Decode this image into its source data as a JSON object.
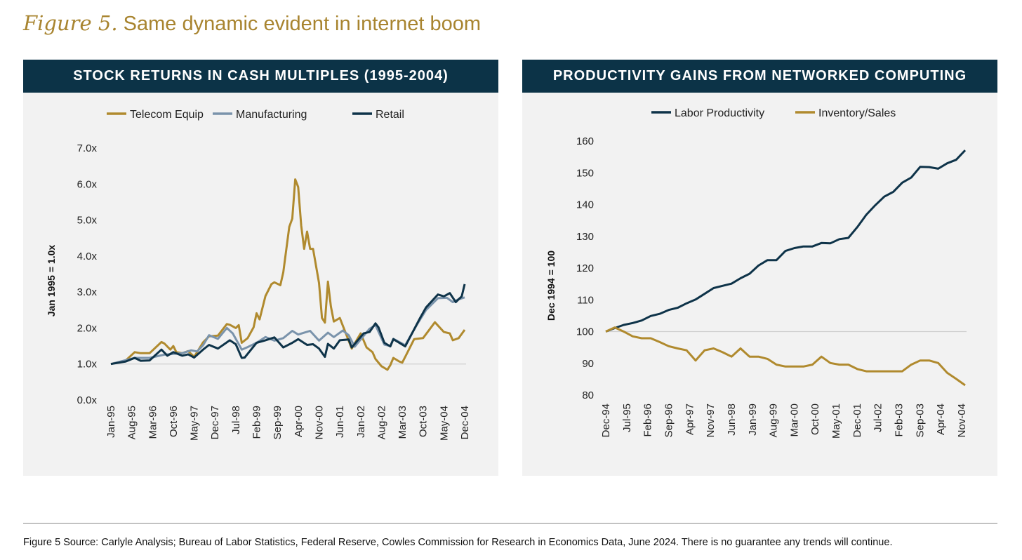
{
  "figure": {
    "number": "Figure 5.",
    "title": "Same dynamic evident in internet boom",
    "source": "Figure 5 Source: Carlyle Analysis; Bureau of Labor Statistics, Federal Reserve, Cowles Commission for Research in Economics Data, June 2024. There is no guarantee any trends will continue."
  },
  "colors": {
    "gold": "#b08a2e",
    "navy": "#0e3349",
    "steel": "#7a93ab",
    "header": "#0c3347"
  },
  "chart_data": [
    {
      "type": "line",
      "title": "STOCK RETURNS IN CASH MULTIPLES (1995-2004)",
      "ylabel": "Jan 1995 = 1.0x",
      "xlabel": "",
      "x_unit": "months since Jan-95",
      "xlim": [
        0,
        119
      ],
      "ylim": [
        0,
        7
      ],
      "yticks": [
        "0.0x",
        "1.0x",
        "2.0x",
        "3.0x",
        "4.0x",
        "5.0x",
        "6.0x",
        "7.0x"
      ],
      "xticks": [
        "Jan-95",
        "Aug-95",
        "Mar-96",
        "Oct-96",
        "May-97",
        "Dec-97",
        "Jul-98",
        "Feb-99",
        "Sep-99",
        "Apr-00",
        "Nov-00",
        "Jun-01",
        "Jan-02",
        "Aug-02",
        "Mar-03",
        "Oct-03",
        "May-04",
        "Dec-04"
      ],
      "reference_line": 1.0,
      "legend": "top",
      "series": [
        {
          "name": "Telecom Equip",
          "color": "#b08a2e",
          "points": [
            [
              0,
              1.0
            ],
            [
              5,
              1.1
            ],
            [
              8,
              1.33
            ],
            [
              10,
              1.3
            ],
            [
              13,
              1.3
            ],
            [
              17,
              1.61
            ],
            [
              18,
              1.57
            ],
            [
              20,
              1.4
            ],
            [
              21,
              1.5
            ],
            [
              22,
              1.33
            ],
            [
              24,
              1.3
            ],
            [
              26,
              1.36
            ],
            [
              28,
              1.2
            ],
            [
              31,
              1.6
            ],
            [
              33,
              1.77
            ],
            [
              36,
              1.79
            ],
            [
              39,
              2.11
            ],
            [
              40,
              2.09
            ],
            [
              42,
              2.0
            ],
            [
              43,
              2.08
            ],
            [
              44,
              1.59
            ],
            [
              46,
              1.72
            ],
            [
              48,
              2.02
            ],
            [
              49,
              2.41
            ],
            [
              50,
              2.24
            ],
            [
              52,
              2.89
            ],
            [
              54,
              3.22
            ],
            [
              55,
              3.27
            ],
            [
              57,
              3.19
            ],
            [
              58,
              3.55
            ],
            [
              60,
              4.81
            ],
            [
              61,
              5.04
            ],
            [
              62,
              6.13
            ],
            [
              63,
              5.92
            ],
            [
              64,
              4.85
            ],
            [
              65,
              4.2
            ],
            [
              66,
              4.68
            ],
            [
              67,
              4.2
            ],
            [
              68,
              4.2
            ],
            [
              70,
              3.25
            ],
            [
              71,
              2.28
            ],
            [
              72,
              2.15
            ],
            [
              73,
              3.29
            ],
            [
              74,
              2.6
            ],
            [
              75,
              2.18
            ],
            [
              77,
              2.28
            ],
            [
              81,
              1.43
            ],
            [
              84,
              1.85
            ],
            [
              86,
              1.46
            ],
            [
              88,
              1.33
            ],
            [
              89,
              1.14
            ],
            [
              91,
              0.94
            ],
            [
              93,
              0.84
            ],
            [
              94,
              0.97
            ],
            [
              95,
              1.17
            ],
            [
              97,
              1.07
            ],
            [
              98,
              1.04
            ],
            [
              99,
              1.2
            ],
            [
              102,
              1.69
            ],
            [
              105,
              1.72
            ],
            [
              109,
              2.16
            ],
            [
              112,
              1.89
            ],
            [
              114,
              1.85
            ],
            [
              115,
              1.66
            ],
            [
              117,
              1.72
            ],
            [
              119,
              1.95
            ]
          ]
        },
        {
          "name": "Manufacturing",
          "color": "#7a93ab",
          "points": [
            [
              0,
              1.0
            ],
            [
              8,
              1.17
            ],
            [
              13,
              1.17
            ],
            [
              18,
              1.26
            ],
            [
              24,
              1.3
            ],
            [
              27,
              1.38
            ],
            [
              29,
              1.35
            ],
            [
              31,
              1.52
            ],
            [
              33,
              1.8
            ],
            [
              36,
              1.7
            ],
            [
              39,
              2.0
            ],
            [
              41,
              1.85
            ],
            [
              44,
              1.4
            ],
            [
              46,
              1.47
            ],
            [
              49,
              1.59
            ],
            [
              52,
              1.75
            ],
            [
              55,
              1.65
            ],
            [
              58,
              1.72
            ],
            [
              61,
              1.92
            ],
            [
              63,
              1.82
            ],
            [
              65,
              1.87
            ],
            [
              67,
              1.92
            ],
            [
              70,
              1.65
            ],
            [
              73,
              1.87
            ],
            [
              75,
              1.75
            ],
            [
              78,
              1.93
            ],
            [
              80,
              1.8
            ],
            [
              82,
              1.48
            ],
            [
              85,
              1.78
            ],
            [
              87,
              1.98
            ],
            [
              89,
              2.08
            ],
            [
              92,
              1.54
            ],
            [
              94,
              1.5
            ],
            [
              95,
              1.7
            ],
            [
              99,
              1.52
            ],
            [
              103,
              2.1
            ],
            [
              106,
              2.5
            ],
            [
              110,
              2.83
            ],
            [
              113,
              2.84
            ],
            [
              115,
              2.72
            ],
            [
              117,
              2.8
            ],
            [
              119,
              2.85
            ]
          ]
        },
        {
          "name": "Retail",
          "color": "#0e3349",
          "points": [
            [
              0,
              1.0
            ],
            [
              5,
              1.07
            ],
            [
              8,
              1.17
            ],
            [
              10,
              1.09
            ],
            [
              13,
              1.1
            ],
            [
              17,
              1.4
            ],
            [
              19,
              1.23
            ],
            [
              21,
              1.33
            ],
            [
              24,
              1.23
            ],
            [
              26,
              1.27
            ],
            [
              28,
              1.18
            ],
            [
              31,
              1.4
            ],
            [
              33,
              1.53
            ],
            [
              36,
              1.43
            ],
            [
              40,
              1.66
            ],
            [
              42,
              1.55
            ],
            [
              44,
              1.17
            ],
            [
              45,
              1.18
            ],
            [
              49,
              1.59
            ],
            [
              52,
              1.66
            ],
            [
              55,
              1.74
            ],
            [
              58,
              1.46
            ],
            [
              61,
              1.59
            ],
            [
              63,
              1.69
            ],
            [
              66,
              1.53
            ],
            [
              68,
              1.55
            ],
            [
              70,
              1.43
            ],
            [
              72,
              1.2
            ],
            [
              73,
              1.56
            ],
            [
              75,
              1.43
            ],
            [
              77,
              1.66
            ],
            [
              80,
              1.68
            ],
            [
              81,
              1.46
            ],
            [
              85,
              1.85
            ],
            [
              87,
              1.89
            ],
            [
              89,
              2.13
            ],
            [
              90,
              2.02
            ],
            [
              92,
              1.59
            ],
            [
              94,
              1.49
            ],
            [
              95,
              1.69
            ],
            [
              99,
              1.49
            ],
            [
              104,
              2.28
            ],
            [
              106,
              2.57
            ],
            [
              110,
              2.93
            ],
            [
              112,
              2.88
            ],
            [
              114,
              2.97
            ],
            [
              116,
              2.72
            ],
            [
              118,
              2.88
            ],
            [
              119,
              3.22
            ]
          ]
        }
      ]
    },
    {
      "type": "line",
      "title": "PRODUCTIVITY GAINS FROM NETWORKED COMPUTING",
      "ylabel": "Dec 1994 = 100",
      "xlabel": "",
      "x_unit": "quarters since Dec-94",
      "xlim": [
        0,
        40
      ],
      "ylim": [
        80,
        160
      ],
      "yticks": [
        "80",
        "90",
        "100",
        "110",
        "120",
        "130",
        "140",
        "150",
        "160"
      ],
      "xticks": [
        "Dec-94",
        "Jul-95",
        "Feb-96",
        "Sep-96",
        "Apr-97",
        "Nov-97",
        "Jun-98",
        "Jan-99",
        "Aug-99",
        "Mar-00",
        "Oct-00",
        "May-01",
        "Dec-01",
        "Jul-02",
        "Feb-03",
        "Sep-03",
        "Apr-04",
        "Nov-04"
      ],
      "reference_line": 100,
      "legend": "top",
      "series": [
        {
          "name": "Labor Productivity",
          "color": "#0e3349",
          "values": [
            100,
            101.1,
            102.1,
            102.7,
            103.5,
            104.9,
            105.6,
            106.8,
            107.5,
            108.9,
            110.1,
            111.9,
            113.7,
            114.4,
            115.1,
            116.8,
            118.2,
            120.8,
            122.5,
            122.5,
            125.4,
            126.3,
            126.8,
            126.8,
            127.9,
            127.8,
            129.1,
            129.5,
            132.9,
            136.8,
            139.8,
            142.5,
            144.0,
            146.9,
            148.5,
            151.9,
            151.8,
            151.3,
            153.0,
            154.1,
            157.1
          ]
        },
        {
          "name": "Inventory/Sales",
          "color": "#b08a2e",
          "values": [
            100,
            101.3,
            100,
            98.5,
            97.9,
            97.9,
            96.7,
            95.4,
            94.7,
            94.1,
            90.9,
            94.1,
            94.7,
            93.5,
            92.1,
            94.7,
            92.1,
            92.1,
            91.4,
            89.6,
            89.0,
            89.0,
            89.0,
            89.6,
            92.1,
            90.1,
            89.6,
            89.6,
            88.2,
            87.5,
            87.5,
            87.5,
            87.5,
            87.5,
            89.6,
            90.9,
            90.9,
            90.1,
            87.0,
            85.1,
            83.1
          ]
        }
      ]
    }
  ]
}
